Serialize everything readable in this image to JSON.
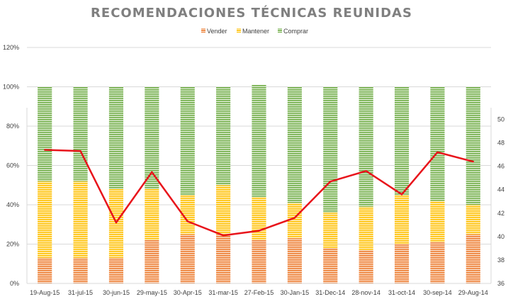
{
  "chart_data": {
    "type": "bar",
    "stacked": true,
    "title": "RECOMENDACIONES TÉCNICAS REUNIDAS",
    "categories": [
      "19-Aug-15",
      "31-jul-15",
      "30-jun-15",
      "29-may-15",
      "30-Apr-15",
      "31-mar-15",
      "27-Feb-15",
      "30-Jan-15",
      "31-Dec-14",
      "28-nov-14",
      "31-oct-14",
      "30-sep-14",
      "29-Aug-14"
    ],
    "series": [
      {
        "name": "Vender",
        "color": "#ed7d31",
        "values": [
          13,
          13,
          13,
          22,
          25,
          25,
          22,
          23,
          18,
          17,
          20,
          21,
          25
        ]
      },
      {
        "name": "Mantener",
        "color": "#ffc000",
        "values": [
          39,
          39,
          35,
          26,
          20,
          25,
          22,
          18,
          18,
          22,
          25,
          21,
          15
        ]
      },
      {
        "name": "Comprar",
        "color": "#70ad47",
        "values": [
          48,
          48,
          52,
          52,
          55,
          50,
          57,
          59,
          64,
          61,
          55,
          58,
          60
        ]
      }
    ],
    "line_series": {
      "axis": "secondary",
      "color": "#e8141b",
      "values": [
        47.4,
        47.3,
        41.2,
        45.5,
        41.3,
        40.1,
        40.5,
        41.6,
        44.7,
        45.6,
        43.6,
        47.2,
        46.4
      ]
    },
    "y_ticks": [
      "0%",
      "20%",
      "40%",
      "60%",
      "80%",
      "100%",
      "120%"
    ],
    "ylim": [
      0,
      120
    ],
    "y2_ticks": [
      "36",
      "38",
      "40",
      "42",
      "44",
      "46",
      "48",
      "50"
    ],
    "y2lim": [
      36,
      51
    ],
    "legend_position": "top",
    "grid": true
  }
}
